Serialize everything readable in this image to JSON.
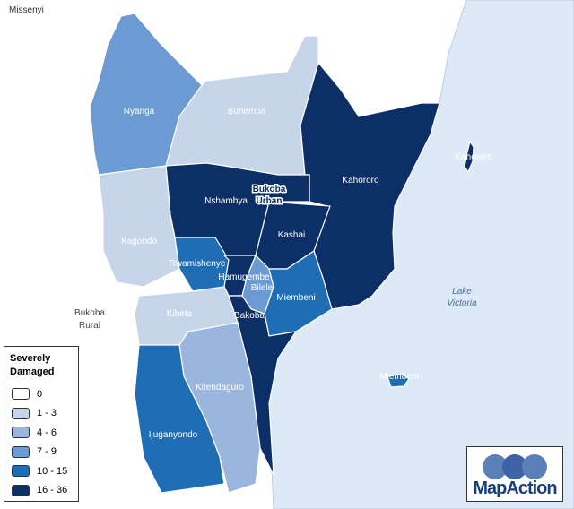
{
  "place_labels": [
    "Missenyi",
    "Bukoba Rural",
    "Lake Victoria",
    "Bukoba Urban"
  ],
  "legend": {
    "title": "Severely Damaged",
    "classes": [
      {
        "label": "0",
        "color": "#ffffff"
      },
      {
        "label": "1 - 3",
        "color": "#c6d5ea"
      },
      {
        "label": "4 - 6",
        "color": "#9bb6dc"
      },
      {
        "label": "7 - 9",
        "color": "#6b9bd2"
      },
      {
        "label": "10 - 15",
        "color": "#1f6db4"
      },
      {
        "label": "16 - 36",
        "color": "#0c2f67"
      }
    ]
  },
  "regions": [
    {
      "name": "Nyanga",
      "class": 3
    },
    {
      "name": "Buhemba",
      "class": 1
    },
    {
      "name": "Kahororo",
      "class": 5
    },
    {
      "name": "Nshambya",
      "class": 5
    },
    {
      "name": "Kashai",
      "class": 5
    },
    {
      "name": "Kagondo",
      "class": 1
    },
    {
      "name": "Rwamishenye",
      "class": 4
    },
    {
      "name": "Hamugembe",
      "class": 5
    },
    {
      "name": "Bilele",
      "class": 3
    },
    {
      "name": "Miembeni",
      "class": 4
    },
    {
      "name": "Kibeta",
      "class": 1
    },
    {
      "name": "Bakoba",
      "class": 5
    },
    {
      "name": "Kitendaguro",
      "class": 2
    },
    {
      "name": "Ijuganyondo",
      "class": 4
    },
    {
      "name": "Kahororo",
      "class": 5
    },
    {
      "name": "Miembeni",
      "class": 4
    }
  ],
  "logo": "MapAction"
}
